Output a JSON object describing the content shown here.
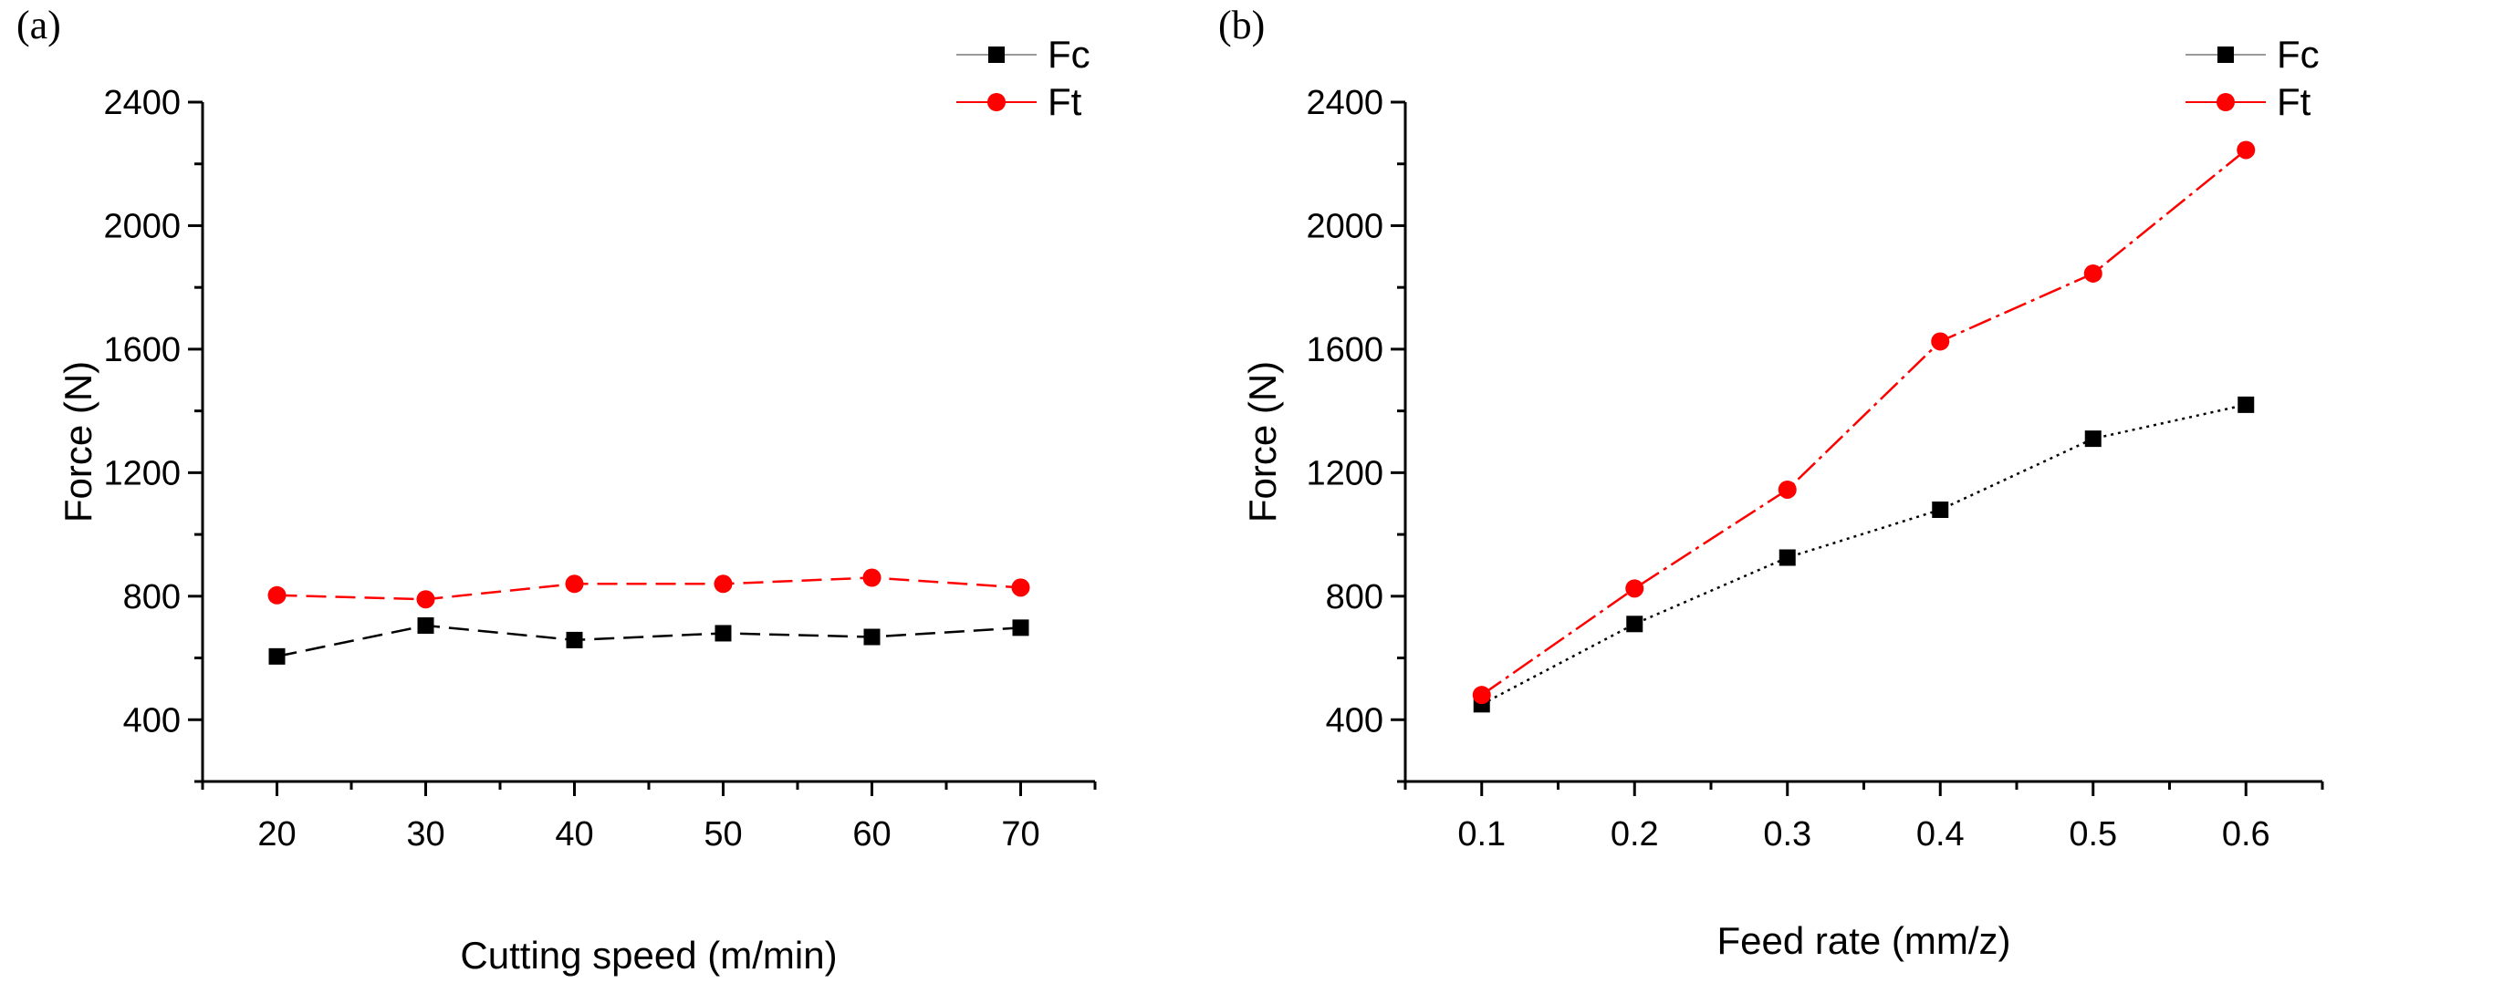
{
  "figure": {
    "panel_labels": [
      "(a)",
      "(b)"
    ]
  },
  "chart_data": [
    {
      "type": "line",
      "panel_label": "(a)",
      "xlabel": "Cutting speed (m/min)",
      "ylabel": "Force (N)",
      "x": [
        20,
        30,
        40,
        50,
        60,
        70
      ],
      "xticks": [
        20,
        30,
        40,
        50,
        60,
        70
      ],
      "xtick_labels": [
        "20",
        "30",
        "40",
        "50",
        "60",
        "70"
      ],
      "xlim": [
        15,
        75
      ],
      "yticks": [
        400,
        800,
        1200,
        1600,
        2000,
        2400
      ],
      "ytick_labels": [
        "400",
        "800",
        "1200",
        "1600",
        "2000",
        "2400"
      ],
      "ylim": [
        200,
        2400
      ],
      "grid": false,
      "legend_position": "top-right",
      "series": [
        {
          "name": "Fc",
          "marker": "square",
          "color": "#000000",
          "line_style": "dashed",
          "values": [
            605,
            705,
            658,
            680,
            668,
            698
          ]
        },
        {
          "name": "Ft",
          "marker": "circle",
          "color": "#ff0000",
          "line_style": "dashed",
          "values": [
            803,
            790,
            840,
            840,
            860,
            828
          ]
        }
      ]
    },
    {
      "type": "line",
      "panel_label": "(b)",
      "xlabel": "Feed rate (mm/z)",
      "ylabel": "Force (N)",
      "x": [
        0.1,
        0.2,
        0.3,
        0.4,
        0.5,
        0.6
      ],
      "xticks": [
        0.1,
        0.2,
        0.3,
        0.4,
        0.5,
        0.6
      ],
      "xtick_labels": [
        "0.1",
        "0.2",
        "0.3",
        "0.4",
        "0.5",
        "0.6"
      ],
      "xlim": [
        0.05,
        0.65
      ],
      "yticks": [
        400,
        800,
        1200,
        1600,
        2000,
        2400
      ],
      "ytick_labels": [
        "400",
        "800",
        "1200",
        "1600",
        "2000",
        "2400"
      ],
      "ylim": [
        200,
        2400
      ],
      "grid": false,
      "legend_position": "top-right",
      "series": [
        {
          "name": "Fc",
          "marker": "square",
          "color": "#000000",
          "line_style": "dotted",
          "values": [
            450,
            710,
            925,
            1080,
            1310,
            1420
          ]
        },
        {
          "name": "Ft",
          "marker": "circle",
          "color": "#ff0000",
          "line_style": "mixed",
          "values": [
            480,
            825,
            1145,
            1625,
            1845,
            2245
          ]
        }
      ]
    }
  ]
}
